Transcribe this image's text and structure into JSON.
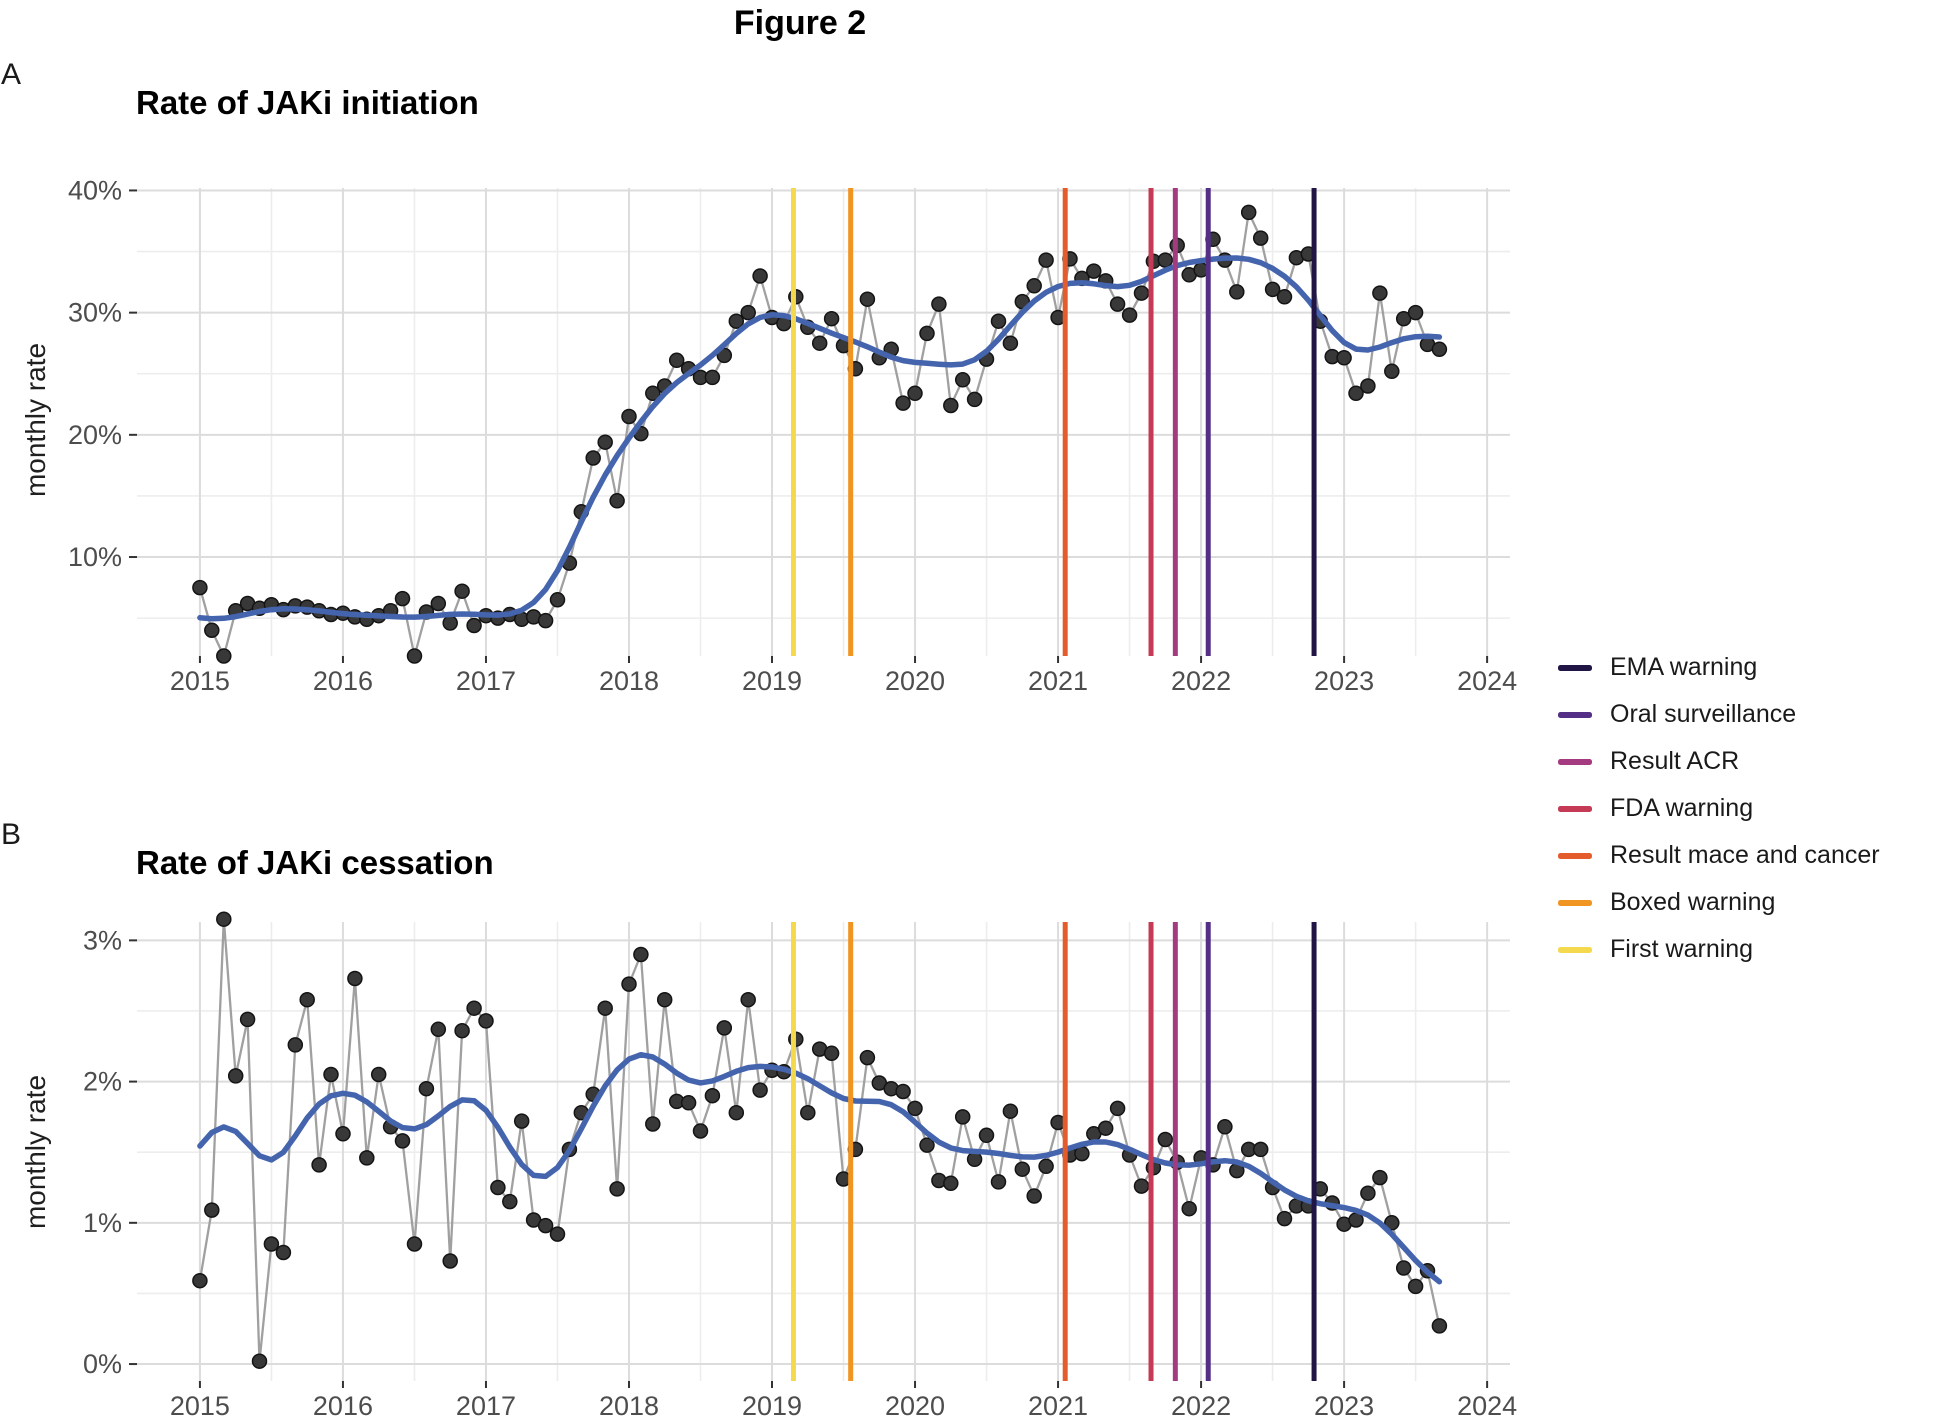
{
  "figure_title": "Figure 2",
  "legend": {
    "items": [
      {
        "label": "EMA warning",
        "color": "#201545"
      },
      {
        "label": "Oral surveillance",
        "color": "#533086"
      },
      {
        "label": "Result ACR",
        "color": "#a43a80"
      },
      {
        "label": "FDA warning",
        "color": "#c53a55"
      },
      {
        "label": "Result mace and cancer",
        "color": "#e45c2c"
      },
      {
        "label": "Boxed warning",
        "color": "#f09422"
      },
      {
        "label": "First warning",
        "color": "#f4d94f"
      }
    ]
  },
  "annotations": {
    "vertical_lines": [
      {
        "label": "First warning",
        "date": 2019.15,
        "color": "#f4d94f"
      },
      {
        "label": "Boxed warning",
        "date": 2019.55,
        "color": "#f09422"
      },
      {
        "label": "Result mace and cancer",
        "date": 2021.05,
        "color": "#e45c2c"
      },
      {
        "label": "FDA warning",
        "date": 2021.65,
        "color": "#c53a55"
      },
      {
        "label": "Result ACR",
        "date": 2021.82,
        "color": "#a43a80"
      },
      {
        "label": "Oral surveillance",
        "date": 2022.05,
        "color": "#533086"
      },
      {
        "label": "EMA warning",
        "date": 2022.79,
        "color": "#201545"
      }
    ]
  },
  "style": {
    "smooth_color": "#4464ae",
    "point_color": "#383838",
    "point_edge": "#141414",
    "series_line_color": "#a0a0a0",
    "grid_major": "#dcdcdc",
    "grid_minor": "#ededed",
    "tick_color": "#333333",
    "axis_text_color": "#4d4d4d"
  },
  "chart_data": [
    {
      "type": "scatter",
      "panel_label": "A",
      "title": "Rate of JAKi initiation",
      "ylabel": "monthly rate",
      "x_monthly_start": "2015-01",
      "x_monthly_end": "2023-09",
      "x_tick_labels": [
        "2015",
        "2016",
        "2017",
        "2018",
        "2019",
        "2020",
        "2021",
        "2022",
        "2023",
        "2024"
      ],
      "x_ticks": [
        2015,
        2016,
        2017,
        2018,
        2019,
        2020,
        2021,
        2022,
        2023,
        2024
      ],
      "y_tick_labels": [
        "40%",
        "30%",
        "20%",
        "10%"
      ],
      "y_ticks": [
        40,
        30,
        20,
        10
      ],
      "y_minor": [
        35,
        25,
        15,
        5
      ],
      "xlim": [
        2014.56,
        2024.16
      ],
      "ylim": [
        1.9,
        40.2
      ],
      "grid": true,
      "legend_position": "right-of-panels",
      "smooth": "loess trend line (blue), computed from values",
      "values": [
        7.5,
        4.0,
        1.9,
        5.6,
        6.2,
        5.8,
        6.1,
        5.7,
        6.0,
        5.9,
        5.6,
        5.3,
        5.4,
        5.1,
        4.9,
        5.2,
        5.6,
        6.6,
        1.9,
        5.5,
        6.2,
        4.6,
        7.2,
        4.4,
        5.2,
        5.0,
        5.3,
        4.9,
        5.1,
        4.8,
        6.5,
        9.5,
        13.7,
        18.1,
        19.4,
        14.6,
        21.5,
        20.1,
        23.4,
        24.0,
        26.1,
        25.4,
        24.7,
        24.7,
        26.5,
        29.3,
        30.0,
        33.0,
        29.6,
        29.1,
        31.3,
        28.8,
        27.5,
        29.5,
        27.3,
        25.4,
        31.1,
        26.3,
        27.0,
        22.6,
        23.4,
        28.3,
        30.7,
        22.4,
        24.5,
        22.9,
        26.2,
        29.3,
        27.5,
        30.9,
        32.2,
        34.3,
        29.6,
        34.4,
        32.8,
        33.4,
        32.6,
        30.7,
        29.8,
        31.6,
        34.2,
        34.3,
        35.5,
        33.1,
        33.5,
        36.0,
        34.3,
        31.7,
        38.2,
        36.1,
        31.9,
        31.3,
        34.5,
        34.8,
        29.3,
        26.4,
        26.3,
        23.4,
        24.0,
        31.6,
        25.2,
        29.5,
        30.0,
        27.4,
        27.0
      ]
    },
    {
      "type": "scatter",
      "panel_label": "B",
      "title": "Rate of JAKi cessation",
      "ylabel": "monthly rate",
      "x_monthly_start": "2015-01",
      "x_monthly_end": "2023-09",
      "x_tick_labels": [
        "2015",
        "2016",
        "2017",
        "2018",
        "2019",
        "2020",
        "2021",
        "2022",
        "2023",
        "2024"
      ],
      "x_ticks": [
        2015,
        2016,
        2017,
        2018,
        2019,
        2020,
        2021,
        2022,
        2023,
        2024
      ],
      "y_tick_labels": [
        "3%",
        "2%",
        "1%",
        "0%"
      ],
      "y_ticks": [
        3,
        2,
        1,
        0
      ],
      "y_minor": [
        2.5,
        1.5,
        0.5
      ],
      "xlim": [
        2014.56,
        2024.16
      ],
      "ylim": [
        -0.12,
        3.13
      ],
      "grid": true,
      "smooth": "loess trend line (blue), computed from values",
      "values": [
        0.59,
        1.09,
        3.15,
        2.04,
        2.44,
        0.02,
        0.85,
        0.79,
        2.26,
        2.58,
        1.41,
        2.05,
        1.63,
        2.73,
        1.46,
        2.05,
        1.68,
        1.58,
        0.85,
        1.95,
        2.37,
        0.73,
        2.36,
        2.52,
        2.43,
        1.25,
        1.15,
        1.72,
        1.02,
        0.98,
        0.92,
        1.52,
        1.78,
        1.91,
        2.52,
        1.24,
        2.69,
        2.9,
        1.7,
        2.58,
        1.86,
        1.85,
        1.65,
        1.9,
        2.38,
        1.78,
        2.58,
        1.94,
        2.08,
        2.07,
        2.3,
        1.78,
        2.23,
        2.2,
        1.31,
        1.52,
        2.17,
        1.99,
        1.95,
        1.93,
        1.81,
        1.55,
        1.3,
        1.28,
        1.75,
        1.45,
        1.62,
        1.29,
        1.79,
        1.38,
        1.19,
        1.4,
        1.71,
        1.48,
        1.49,
        1.63,
        1.67,
        1.81,
        1.48,
        1.26,
        1.39,
        1.59,
        1.43,
        1.1,
        1.46,
        1.41,
        1.68,
        1.37,
        1.52,
        1.52,
        1.25,
        1.03,
        1.12,
        1.12,
        1.24,
        1.14,
        0.99,
        1.02,
        1.21,
        1.32,
        1.0,
        0.68,
        0.55,
        0.66,
        0.27
      ]
    }
  ]
}
